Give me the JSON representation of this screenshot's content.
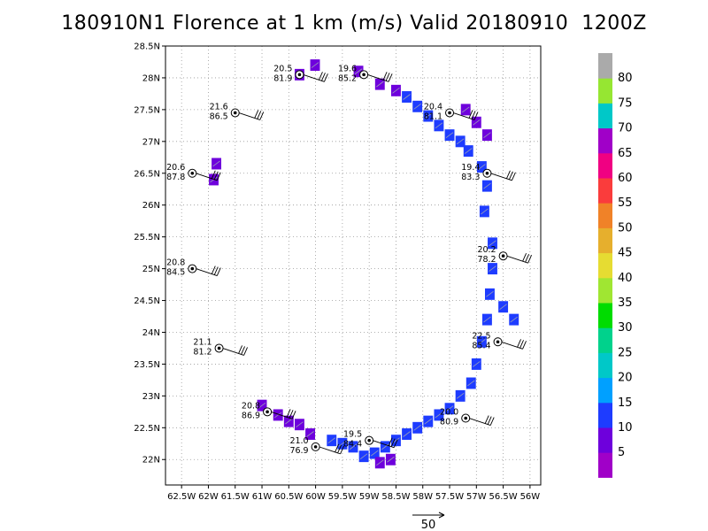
{
  "title": "180910N1 Florence at 1 km (m/s) Valid 20180910  1200Z",
  "chart_data": {
    "type": "scatter",
    "xlim": [
      -62.8,
      -55.8
    ],
    "ylim": [
      21.6,
      28.5
    ],
    "grid": true,
    "x_ticks": [
      {
        "v": -62.5,
        "label": "62.5W"
      },
      {
        "v": -62,
        "label": "62W"
      },
      {
        "v": -61.5,
        "label": "61.5W"
      },
      {
        "v": -61,
        "label": "61W"
      },
      {
        "v": -60.5,
        "label": "60.5W"
      },
      {
        "v": -60,
        "label": "60W"
      },
      {
        "v": -59.5,
        "label": "59.5W"
      },
      {
        "v": -59,
        "label": "59W"
      },
      {
        "v": -58.5,
        "label": "58.5W"
      },
      {
        "v": -58,
        "label": "58W"
      },
      {
        "v": -57.5,
        "label": "57.5W"
      },
      {
        "v": -57,
        "label": "57W"
      },
      {
        "v": -56.5,
        "label": "56.5W"
      },
      {
        "v": -56,
        "label": "56W"
      }
    ],
    "y_ticks": [
      {
        "v": 22,
        "label": "22N"
      },
      {
        "v": 22.5,
        "label": "22.5N"
      },
      {
        "v": 23,
        "label": "23N"
      },
      {
        "v": 23.5,
        "label": "23.5N"
      },
      {
        "v": 24,
        "label": "24N"
      },
      {
        "v": 24.5,
        "label": "24.5N"
      },
      {
        "v": 25,
        "label": "25N"
      },
      {
        "v": 25.5,
        "label": "25.5N"
      },
      {
        "v": 26,
        "label": "26N"
      },
      {
        "v": 26.5,
        "label": "26.5N"
      },
      {
        "v": 27,
        "label": "27N"
      },
      {
        "v": 27.5,
        "label": "27.5N"
      },
      {
        "v": 28,
        "label": "28N"
      },
      {
        "v": 28.5,
        "label": "28.5N"
      }
    ],
    "stations": [
      {
        "lon": -60.3,
        "lat": 28.05,
        "top": "20.5",
        "bottom": "81.9"
      },
      {
        "lon": -59.1,
        "lat": 28.05,
        "top": "19.6",
        "bottom": "85.2"
      },
      {
        "lon": -61.5,
        "lat": 27.45,
        "top": "21.6",
        "bottom": "86.5"
      },
      {
        "lon": -57.5,
        "lat": 27.45,
        "top": "20.4",
        "bottom": "81.1"
      },
      {
        "lon": -62.3,
        "lat": 26.5,
        "top": "20.6",
        "bottom": "87.8"
      },
      {
        "lon": -56.8,
        "lat": 26.5,
        "top": "19.4",
        "bottom": "83.3"
      },
      {
        "lon": -62.3,
        "lat": 25.0,
        "top": "20.8",
        "bottom": "84.5"
      },
      {
        "lon": -56.5,
        "lat": 25.2,
        "top": "20.2",
        "bottom": "78.2"
      },
      {
        "lon": -61.8,
        "lat": 23.75,
        "top": "21.1",
        "bottom": "81.2"
      },
      {
        "lon": -56.6,
        "lat": 23.85,
        "top": "22.5",
        "bottom": "85.4"
      },
      {
        "lon": -60.9,
        "lat": 22.75,
        "top": "20.8",
        "bottom": "86.9"
      },
      {
        "lon": -57.2,
        "lat": 22.65,
        "top": "20.0",
        "bottom": "80.9"
      },
      {
        "lon": -60.0,
        "lat": 22.2,
        "top": "21.0",
        "bottom": "76.9"
      },
      {
        "lon": -59.0,
        "lat": 22.3,
        "top": "19.5",
        "bottom": "84.4"
      }
    ],
    "wind_field": [
      {
        "cells": [
          [
            -60.01,
            28.2
          ],
          [
            -60.3,
            28.05
          ]
        ],
        "value": 7
      },
      {
        "cells": [
          [
            -59.2,
            28.1
          ],
          [
            -58.8,
            27.9
          ],
          [
            -58.5,
            27.8
          ]
        ],
        "value": 6
      },
      {
        "cells": [
          [
            -58.3,
            27.7
          ],
          [
            -58.1,
            27.55
          ],
          [
            -57.9,
            27.4
          ],
          [
            -57.7,
            27.25
          ],
          [
            -57.5,
            27.1
          ],
          [
            -57.3,
            27.0
          ],
          [
            -57.15,
            26.85
          ]
        ],
        "value": 12
      },
      {
        "cells": [
          [
            -57.2,
            27.5
          ],
          [
            -57.0,
            27.3
          ],
          [
            -56.8,
            27.1
          ]
        ],
        "value": 9
      },
      {
        "cells": [
          [
            -56.9,
            26.6
          ],
          [
            -56.8,
            26.3
          ],
          [
            -56.85,
            25.9
          ]
        ],
        "value": 14
      },
      {
        "cells": [
          [
            -56.7,
            25.4
          ],
          [
            -56.7,
            25.0
          ],
          [
            -56.75,
            24.6
          ],
          [
            -56.8,
            24.2
          ],
          [
            -56.9,
            23.85
          ],
          [
            -57.0,
            23.5
          ],
          [
            -57.1,
            23.2
          ]
        ],
        "value": 14
      },
      {
        "cells": [
          [
            -56.5,
            24.4
          ],
          [
            -56.3,
            24.2
          ]
        ],
        "value": 13
      },
      {
        "cells": [
          [
            -57.3,
            23.0
          ],
          [
            -57.5,
            22.8
          ],
          [
            -57.7,
            22.7
          ],
          [
            -57.9,
            22.6
          ],
          [
            -58.1,
            22.5
          ],
          [
            -58.3,
            22.4
          ],
          [
            -58.5,
            22.3
          ],
          [
            -58.7,
            22.2
          ],
          [
            -58.9,
            22.1
          ],
          [
            -59.1,
            22.05
          ]
        ],
        "value": 13
      },
      {
        "cells": [
          [
            -59.3,
            22.2
          ],
          [
            -59.5,
            22.25
          ],
          [
            -59.7,
            22.3
          ]
        ],
        "value": 13
      },
      {
        "cells": [
          [
            -60.1,
            22.4
          ],
          [
            -60.3,
            22.55
          ],
          [
            -60.5,
            22.6
          ],
          [
            -60.7,
            22.7
          ],
          [
            -61.0,
            22.85
          ]
        ],
        "value": 8
      },
      {
        "cells": [
          [
            -61.85,
            26.65
          ],
          [
            -61.9,
            26.4
          ]
        ],
        "value": 7
      },
      {
        "cells": [
          [
            -58.6,
            22.0
          ],
          [
            -58.8,
            21.95
          ]
        ],
        "value": 6
      }
    ],
    "colorbar": {
      "labels": [
        "5",
        "10",
        "15",
        "20",
        "25",
        "30",
        "35",
        "40",
        "45",
        "50",
        "55",
        "60",
        "65",
        "70",
        "75",
        "80"
      ],
      "colors": [
        "#a000c8",
        "#6e00dc",
        "#1e3cff",
        "#00a0ff",
        "#00c8c8",
        "#00d28c",
        "#00dc00",
        "#a0e632",
        "#e6dc32",
        "#e6af2d",
        "#f08228",
        "#fa3c3c",
        "#f00082",
        "#a000c8",
        "#00c8c8",
        "#96e632",
        "#aaaaaa"
      ]
    },
    "reference_vector": {
      "label": "50"
    }
  }
}
